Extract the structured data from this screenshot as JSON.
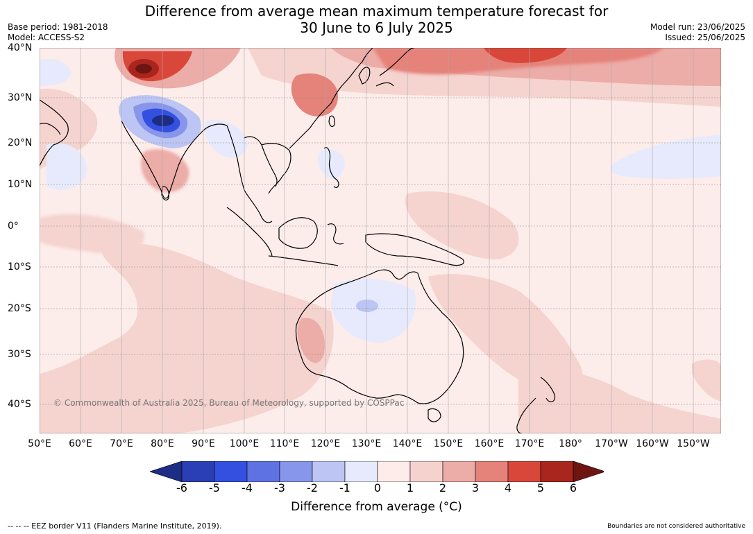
{
  "title": {
    "line1": "Difference from average mean maximum temperature forecast for",
    "line2": "30 June to 6 July 2025"
  },
  "meta_left": {
    "base_period": "Base period: 1981-2018",
    "model": "Model: ACCESS-S2"
  },
  "meta_right": {
    "model_run": "Model run: 23/06/2025",
    "issued": "Issued: 25/06/2025"
  },
  "map": {
    "lon_labels": [
      "50°E",
      "60°E",
      "70°E",
      "80°E",
      "90°E",
      "100°E",
      "110°E",
      "120°E",
      "130°E",
      "140°E",
      "150°E",
      "160°E",
      "170°E",
      "180°",
      "170°W",
      "160°W",
      "150°W"
    ],
    "lat_labels": [
      "40°N",
      "30°N",
      "20°N",
      "10°N",
      "0°",
      "10°S",
      "20°S",
      "30°S",
      "40°S"
    ],
    "copyright": "© Commonwealth of Australia 2025, Bureau of Meteorology, supported by COSPPac"
  },
  "colorbar": {
    "labels": [
      "-6",
      "-5",
      "-4",
      "-3",
      "-2",
      "-1",
      "0",
      "1",
      "2",
      "3",
      "4",
      "5",
      "6"
    ],
    "colors": [
      "#1d2d85",
      "#2a3fb6",
      "#3450e0",
      "#5f72e3",
      "#8796ea",
      "#bcc5f4",
      "#e6eafc",
      "#fdecea",
      "#f6d2cf",
      "#ecaca7",
      "#e5827a",
      "#d9473b",
      "#a9261f",
      "#6e1512"
    ],
    "title": "Difference from average (°C)"
  },
  "footer": {
    "left": "--  --  -- EEZ border V11 (Flanders Marine Institute, 2019).",
    "right": "Boundaries are not considered authoritative"
  }
}
